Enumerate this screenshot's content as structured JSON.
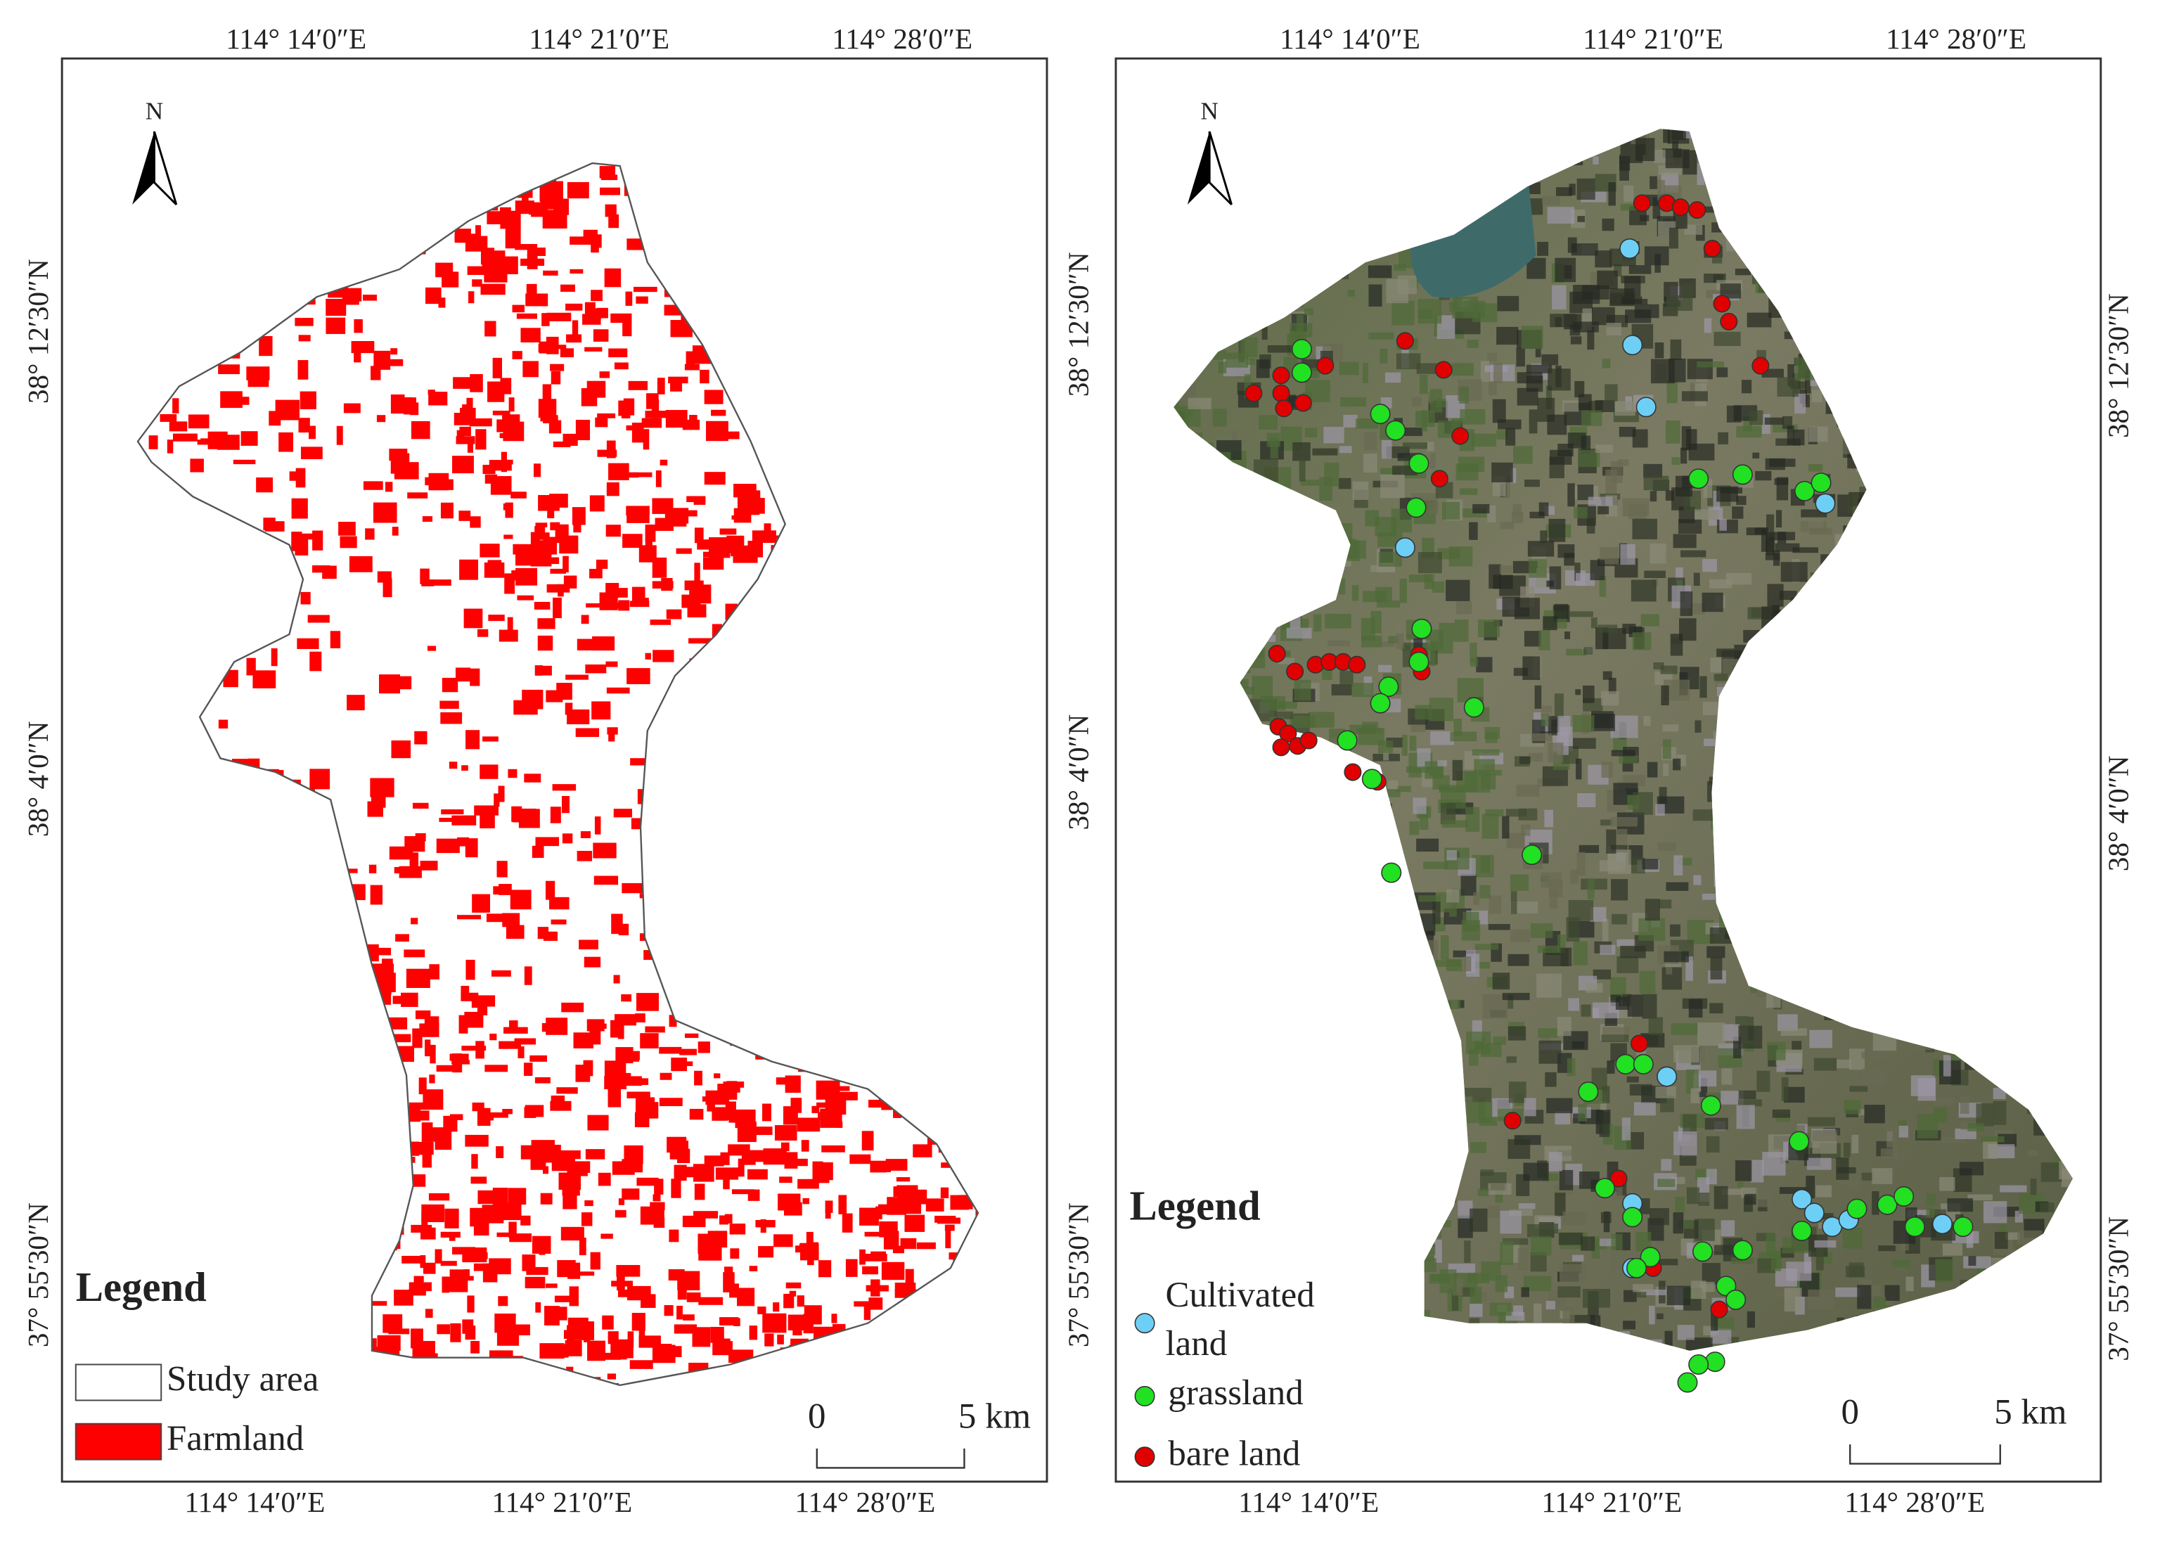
{
  "panels": [
    {
      "north": "N",
      "top_labels": [
        "114°  14′0″E",
        "114°  21′0″E",
        "114°  28′0″E"
      ],
      "bottom_labels": [
        "114°  14′0″E",
        "114°  21′0″E",
        "114°  28′0″E"
      ],
      "left_labels": [
        "38°  12′30″N",
        "38°  4′0″N",
        "37°  55′30″N"
      ],
      "legend": {
        "title": "Legend",
        "items": [
          {
            "label": "Study area",
            "color": "#ffffff"
          },
          {
            "label": "Farmland",
            "color": "#ff0000"
          }
        ]
      },
      "scale": {
        "start": 0,
        "end": "5 km"
      }
    },
    {
      "north": "N",
      "top_labels": [
        "114°  14′0″E",
        "114°  21′0″E",
        "114°  28′0″E"
      ],
      "bottom_labels": [
        "114°  14′0″E",
        "114°  21′0″E",
        "114°  28′0″E"
      ],
      "left_labels": [
        "38°  12′30″N",
        "38°  4′0″N",
        "37°  55′30″N"
      ],
      "right_labels": [
        "38°  12′30″N",
        "38°  4′0″N",
        "37°  55′30″N"
      ],
      "legend": {
        "title": "Legend",
        "items": [
          {
            "label": "Cultivated land",
            "color": "#6ecff6"
          },
          {
            "label": "grassland",
            "color": "#22e022"
          },
          {
            "label": "bare land",
            "color": "#e00000"
          }
        ]
      },
      "scale": {
        "start": 0,
        "end": "5 km"
      }
    }
  ]
}
